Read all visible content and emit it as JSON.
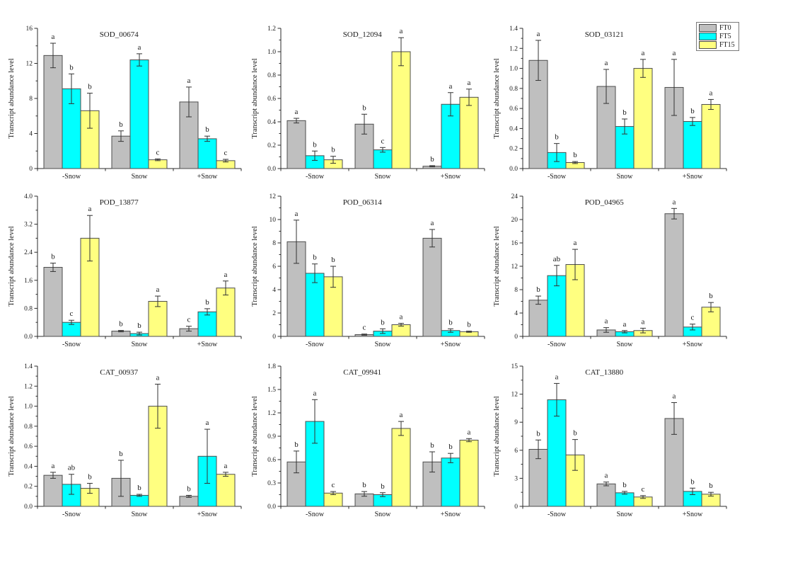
{
  "figure": {
    "background": "#ffffff"
  },
  "legend": {
    "position": "top-right",
    "entries": [
      {
        "label": "FT0",
        "color": "#BFBFBF"
      },
      {
        "label": "FT5",
        "color": "#00FFFF"
      },
      {
        "label": "FT15",
        "color": "#FFFF80"
      }
    ]
  },
  "style_colors": {
    "bar_edge": "#4d4d4d",
    "axis": "#2b2b2b",
    "error_bar": "#333333",
    "text": "#1a1a1a"
  },
  "chart_data": [
    {
      "type": "bar",
      "title": "SOD_00674",
      "ylabel": "Transcript abundance level",
      "ylim": [
        0,
        16
      ],
      "ytick_step": 4,
      "ytick_decimals": 0,
      "grid": false,
      "categories": [
        "-Snow",
        "Snow",
        "+Snow"
      ],
      "series": [
        {
          "name": "FT0",
          "values": [
            12.9,
            3.7,
            7.6
          ],
          "errors": [
            1.4,
            0.6,
            1.7
          ],
          "letters": [
            "a",
            "b",
            "a"
          ]
        },
        {
          "name": "FT5",
          "values": [
            9.1,
            12.4,
            3.4
          ],
          "errors": [
            1.7,
            0.7,
            0.3
          ],
          "letters": [
            "b",
            "a",
            "b"
          ]
        },
        {
          "name": "FT15",
          "values": [
            6.6,
            1.0,
            0.9
          ],
          "errors": [
            2.0,
            0.1,
            0.15
          ],
          "letters": [
            "b",
            "c",
            "c"
          ]
        }
      ]
    },
    {
      "type": "bar",
      "title": "SOD_12094",
      "ylabel": "Transcript abundance level",
      "ylim": [
        0,
        1.2
      ],
      "ytick_step": 0.2,
      "ytick_decimals": 1,
      "grid": false,
      "categories": [
        "-Snow",
        "Snow",
        "+Snow"
      ],
      "series": [
        {
          "name": "FT0",
          "values": [
            0.41,
            0.38,
            0.02
          ],
          "errors": [
            0.02,
            0.085,
            0.005
          ],
          "letters": [
            "a",
            "b",
            "b"
          ]
        },
        {
          "name": "FT5",
          "values": [
            0.11,
            0.16,
            0.55
          ],
          "errors": [
            0.04,
            0.02,
            0.1
          ],
          "letters": [
            "b",
            "c",
            "a"
          ]
        },
        {
          "name": "FT15",
          "values": [
            0.075,
            1.0,
            0.61
          ],
          "errors": [
            0.03,
            0.12,
            0.07
          ],
          "letters": [
            "b",
            "a",
            "a"
          ]
        }
      ]
    },
    {
      "type": "bar",
      "title": "SOD_03121",
      "ylabel": "Transcript abundance level",
      "ylim": [
        0,
        1.4
      ],
      "ytick_step": 0.2,
      "ytick_decimals": 1,
      "grid": false,
      "categories": [
        "-Snow",
        "Snow",
        "+Snow"
      ],
      "series": [
        {
          "name": "FT0",
          "values": [
            1.08,
            0.82,
            0.81
          ],
          "errors": [
            0.2,
            0.17,
            0.28
          ],
          "letters": [
            "a",
            "a",
            "a"
          ]
        },
        {
          "name": "FT5",
          "values": [
            0.16,
            0.42,
            0.47
          ],
          "errors": [
            0.09,
            0.075,
            0.04
          ],
          "letters": [
            "b",
            "b",
            "b"
          ]
        },
        {
          "name": "FT15",
          "values": [
            0.06,
            1.0,
            0.64
          ],
          "errors": [
            0.01,
            0.09,
            0.05
          ],
          "letters": [
            "b",
            "a",
            "a"
          ]
        }
      ]
    },
    {
      "type": "bar",
      "title": "POD_13877",
      "ylabel": "Transcript abundance level",
      "ylim": [
        0,
        4.0
      ],
      "ytick_step": 0.8,
      "ytick_decimals": 1,
      "grid": false,
      "categories": [
        "-Snow",
        "Snow",
        "+Snow"
      ],
      "series": [
        {
          "name": "FT0",
          "values": [
            1.97,
            0.15,
            0.22
          ],
          "errors": [
            0.12,
            0.02,
            0.07
          ],
          "letters": [
            "b",
            "b",
            "c"
          ]
        },
        {
          "name": "FT5",
          "values": [
            0.4,
            0.08,
            0.7
          ],
          "errors": [
            0.06,
            0.04,
            0.09
          ],
          "letters": [
            "c",
            "b",
            "b"
          ]
        },
        {
          "name": "FT15",
          "values": [
            2.8,
            1.0,
            1.38
          ],
          "errors": [
            0.65,
            0.15,
            0.2
          ],
          "letters": [
            "a",
            "a",
            "a"
          ]
        }
      ]
    },
    {
      "type": "bar",
      "title": "POD_06314",
      "ylabel": "Transcript abundance level",
      "ylim": [
        0,
        12
      ],
      "ytick_step": 2,
      "ytick_decimals": 0,
      "grid": false,
      "categories": [
        "-Snow",
        "Snow",
        "+Snow"
      ],
      "series": [
        {
          "name": "FT0",
          "values": [
            8.1,
            0.15,
            8.4
          ],
          "errors": [
            1.85,
            0.05,
            0.75
          ],
          "letters": [
            "a",
            "c",
            "a"
          ]
        },
        {
          "name": "FT5",
          "values": [
            5.4,
            0.45,
            0.5
          ],
          "errors": [
            0.8,
            0.2,
            0.15
          ],
          "letters": [
            "b",
            "b",
            "b"
          ]
        },
        {
          "name": "FT15",
          "values": [
            5.1,
            1.0,
            0.4
          ],
          "errors": [
            0.9,
            0.12,
            0.05
          ],
          "letters": [
            "b",
            "a",
            "b"
          ]
        }
      ]
    },
    {
      "type": "bar",
      "title": "POD_04965",
      "ylabel": "Transcript abundance level",
      "ylim": [
        0,
        24
      ],
      "ytick_step": 4,
      "ytick_decimals": 0,
      "grid": false,
      "categories": [
        "-Snow",
        "Snow",
        "+Snow"
      ],
      "series": [
        {
          "name": "FT0",
          "values": [
            6.2,
            1.1,
            21.0
          ],
          "errors": [
            0.7,
            0.4,
            0.9
          ],
          "letters": [
            "b",
            "a",
            "a"
          ]
        },
        {
          "name": "FT5",
          "values": [
            10.4,
            0.8,
            1.6
          ],
          "errors": [
            1.75,
            0.2,
            0.5
          ],
          "letters": [
            "ab",
            "a",
            "c"
          ]
        },
        {
          "name": "FT15",
          "values": [
            12.3,
            1.0,
            5.0
          ],
          "errors": [
            2.6,
            0.4,
            0.8
          ],
          "letters": [
            "a",
            "a",
            "b"
          ]
        }
      ]
    },
    {
      "type": "bar",
      "title": "CAT_00937",
      "ylabel": "Transcript abundance level",
      "ylim": [
        0,
        1.4
      ],
      "ytick_step": 0.2,
      "ytick_decimals": 1,
      "grid": false,
      "categories": [
        "-Snow",
        "Snow",
        "+Snow"
      ],
      "series": [
        {
          "name": "FT0",
          "values": [
            0.31,
            0.28,
            0.1
          ],
          "errors": [
            0.03,
            0.18,
            0.01
          ],
          "letters": [
            "a",
            "b",
            "b"
          ]
        },
        {
          "name": "FT5",
          "values": [
            0.22,
            0.11,
            0.5
          ],
          "errors": [
            0.1,
            0.01,
            0.27
          ],
          "letters": [
            "ab",
            "b",
            "a"
          ]
        },
        {
          "name": "FT15",
          "values": [
            0.18,
            1.0,
            0.32
          ],
          "errors": [
            0.05,
            0.22,
            0.02
          ],
          "letters": [
            "b",
            "a",
            "a"
          ]
        }
      ]
    },
    {
      "type": "bar",
      "title": "CAT_09941",
      "ylabel": "Transcript abundance level",
      "ylim": [
        0,
        1.8
      ],
      "ytick_step": 0.3,
      "ytick_decimals": 1,
      "grid": false,
      "categories": [
        "-Snow",
        "Snow",
        "+Snow"
      ],
      "series": [
        {
          "name": "FT0",
          "values": [
            0.57,
            0.16,
            0.57
          ],
          "errors": [
            0.14,
            0.03,
            0.13
          ],
          "letters": [
            "b",
            "b",
            "b"
          ]
        },
        {
          "name": "FT5",
          "values": [
            1.09,
            0.15,
            0.62
          ],
          "errors": [
            0.28,
            0.025,
            0.06
          ],
          "letters": [
            "a",
            "b",
            "b"
          ]
        },
        {
          "name": "FT15",
          "values": [
            0.17,
            1.0,
            0.85
          ],
          "errors": [
            0.02,
            0.09,
            0.02
          ],
          "letters": [
            "c",
            "a",
            "a"
          ]
        }
      ]
    },
    {
      "type": "bar",
      "title": "CAT_13880",
      "ylabel": "Transcript abundance level",
      "ylim": [
        0,
        15
      ],
      "ytick_step": 3,
      "ytick_decimals": 0,
      "grid": false,
      "categories": [
        "-Snow",
        "Snow",
        "+Snow"
      ],
      "series": [
        {
          "name": "FT0",
          "values": [
            6.1,
            2.4,
            9.4
          ],
          "errors": [
            1.0,
            0.2,
            1.7
          ],
          "letters": [
            "b",
            "a",
            "a"
          ]
        },
        {
          "name": "FT5",
          "values": [
            11.4,
            1.45,
            1.6
          ],
          "errors": [
            1.75,
            0.15,
            0.35
          ],
          "letters": [
            "a",
            "b",
            "b"
          ]
        },
        {
          "name": "FT15",
          "values": [
            5.5,
            1.0,
            1.3
          ],
          "errors": [
            1.65,
            0.15,
            0.2
          ],
          "letters": [
            "b",
            "c",
            "b"
          ]
        }
      ]
    }
  ]
}
